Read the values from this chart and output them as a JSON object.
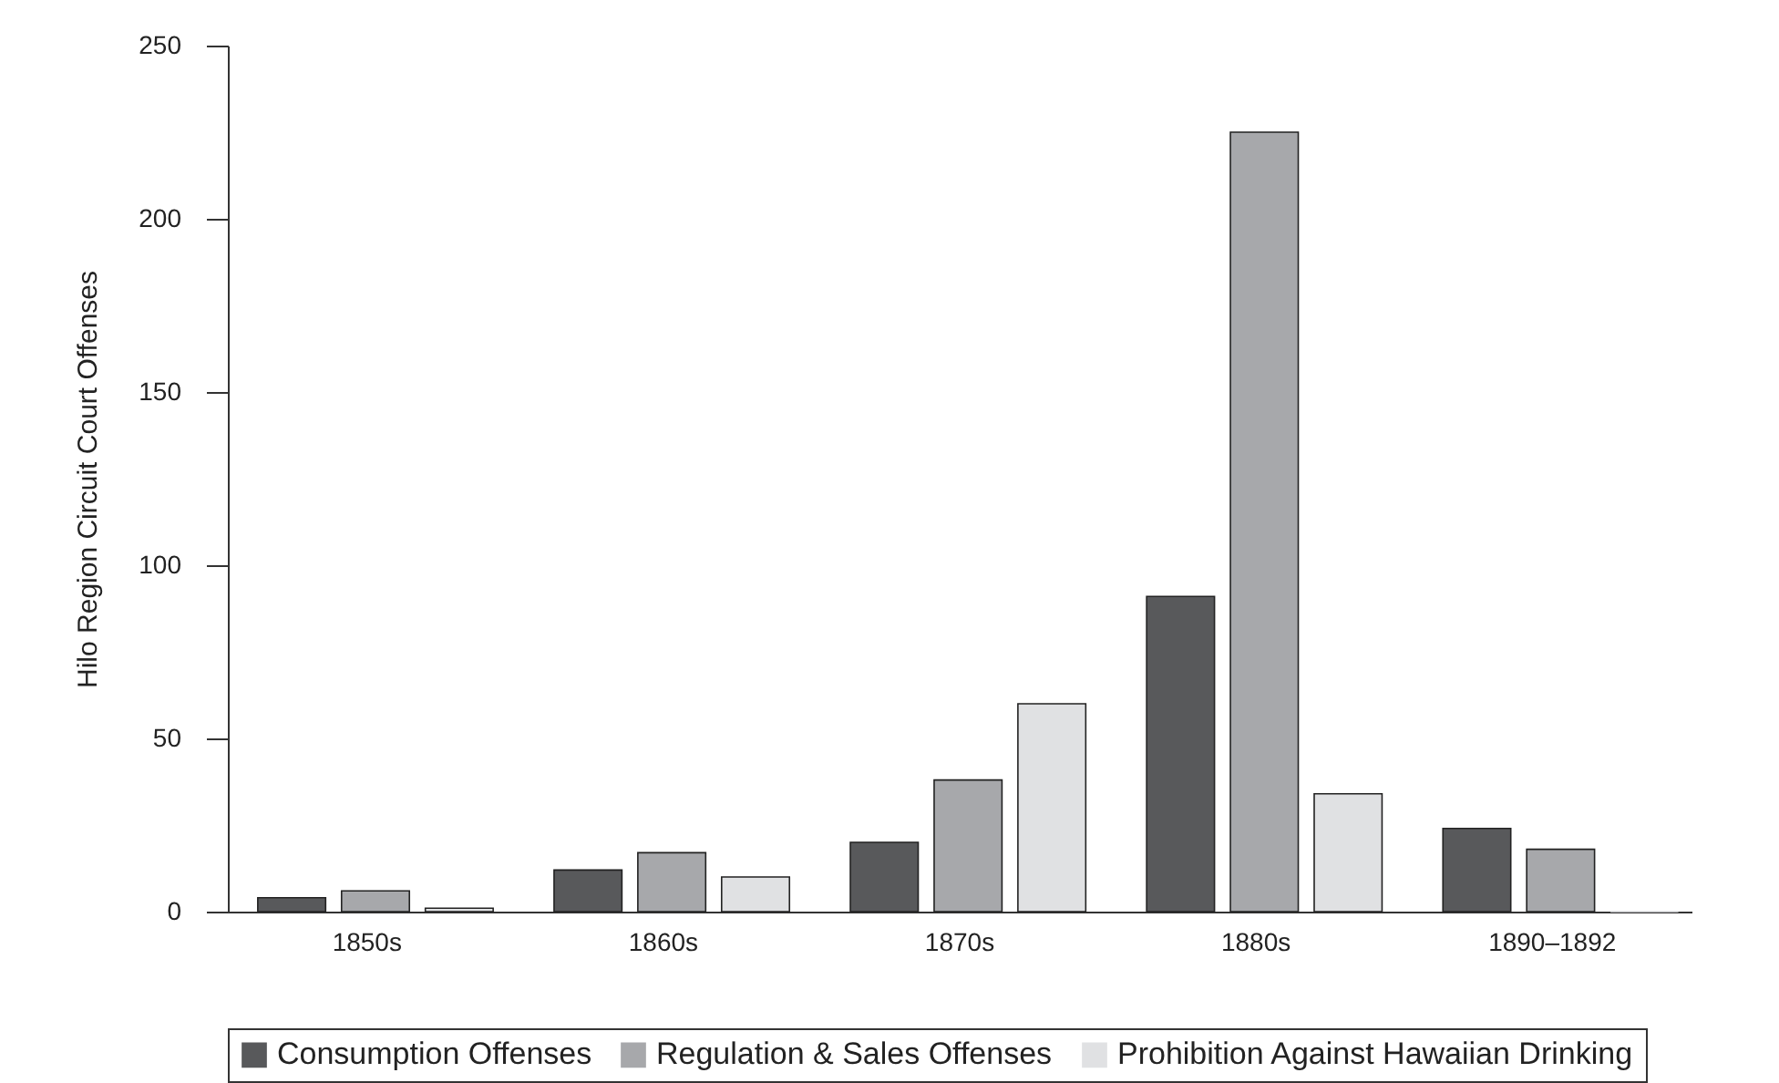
{
  "chart_data": {
    "type": "bar",
    "ylabel": "Hilo Region Circuit Court Offenses",
    "categories": [
      "1850s",
      "1860s",
      "1870s",
      "1880s",
      "1890–1892"
    ],
    "series": [
      {
        "name": "Consumption Offenses",
        "color": "#58595b",
        "values": [
          4,
          12,
          20,
          91,
          24
        ]
      },
      {
        "name": "Regulation & Sales Offenses",
        "color": "#a7a8ab",
        "values": [
          6,
          17,
          38,
          225,
          18
        ]
      },
      {
        "name": "Prohibition Against Hawaiian Drinking",
        "color": "#e0e1e3",
        "values": [
          1,
          10,
          60,
          34,
          0
        ]
      }
    ],
    "ylim": [
      0,
      250
    ],
    "yticks": [
      0,
      50,
      100,
      150,
      200,
      250
    ],
    "grid": false,
    "legend": "bottom"
  }
}
